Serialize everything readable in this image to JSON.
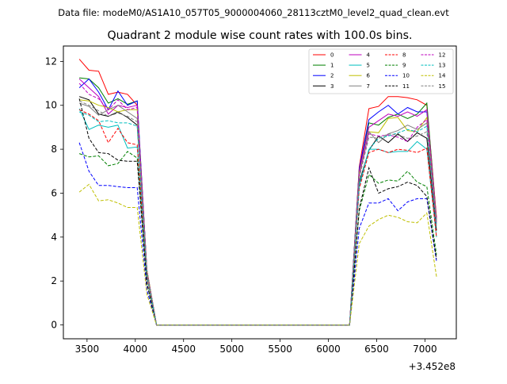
{
  "figure": {
    "suptitle": "Data file: modeM0/AS1A10_057T05_9000004060_28113cztM0_level2_quad_clean.evt"
  },
  "chart_data": {
    "type": "line",
    "title": "Quadrant 2 module wise count rates with 100.0s bins.",
    "xlabel": "",
    "ylabel": "",
    "x_offset_label": "+3.452e8",
    "xlim": [
      3255,
      7325
    ],
    "ylim": [
      -0.63,
      12.7
    ],
    "x_ticks": [
      3500,
      4000,
      4500,
      5000,
      5500,
      6000,
      6500,
      7000
    ],
    "y_ticks": [
      0,
      2,
      4,
      6,
      8,
      10,
      12
    ],
    "grid": false,
    "legend": {
      "placement": "top-right",
      "columns": 4
    },
    "x": [
      3420,
      3520,
      3620,
      3720,
      3820,
      3920,
      4020,
      4120,
      4220,
      4320,
      4420,
      4520,
      4620,
      4720,
      4820,
      4920,
      5020,
      5120,
      5220,
      5320,
      5420,
      5520,
      5620,
      5720,
      5820,
      5920,
      6020,
      6120,
      6220,
      6320,
      6420,
      6520,
      6620,
      6720,
      6820,
      6920,
      7020,
      7120
    ],
    "series": [
      {
        "name": "0",
        "color": "#ff0000",
        "dashed": false,
        "values": [
          12.1,
          11.6,
          11.55,
          10.5,
          10.6,
          10.5,
          10.0,
          2.5,
          0,
          0,
          0,
          0,
          0,
          0,
          0,
          0,
          0,
          0,
          0,
          0,
          0,
          0,
          0,
          0,
          0,
          0,
          0,
          0,
          0,
          7.2,
          9.85,
          9.95,
          10.4,
          10.4,
          10.35,
          10.25,
          10.0,
          4.9
        ]
      },
      {
        "name": "1",
        "color": "#008000",
        "dashed": false,
        "values": [
          11.25,
          11.2,
          10.8,
          10.1,
          10.3,
          10.05,
          10.2,
          2.5,
          0,
          0,
          0,
          0,
          0,
          0,
          0,
          0,
          0,
          0,
          0,
          0,
          0,
          0,
          0,
          0,
          0,
          0,
          0,
          0,
          0,
          7.1,
          9.2,
          9.1,
          9.45,
          9.6,
          9.4,
          9.6,
          10.1,
          4.8
        ]
      },
      {
        "name": "2",
        "color": "#0000ff",
        "dashed": false,
        "values": [
          10.8,
          11.2,
          10.6,
          9.8,
          10.65,
          10.0,
          10.2,
          2.5,
          0,
          0,
          0,
          0,
          0,
          0,
          0,
          0,
          0,
          0,
          0,
          0,
          0,
          0,
          0,
          0,
          0,
          0,
          0,
          0,
          0,
          7.1,
          9.35,
          9.7,
          10.0,
          9.6,
          9.9,
          9.7,
          9.7,
          4.7
        ]
      },
      {
        "name": "3",
        "color": "#000000",
        "dashed": false,
        "values": [
          10.4,
          10.25,
          9.6,
          9.5,
          9.7,
          9.45,
          9.1,
          2.4,
          0,
          0,
          0,
          0,
          0,
          0,
          0,
          0,
          0,
          0,
          0,
          0,
          0,
          0,
          0,
          0,
          0,
          0,
          0,
          0,
          0,
          6.5,
          7.95,
          8.6,
          8.3,
          8.7,
          8.35,
          8.75,
          8.5,
          4.3
        ]
      },
      {
        "name": "4",
        "color": "#bf00bf",
        "dashed": false,
        "values": [
          11.2,
          10.8,
          10.4,
          9.6,
          10.0,
          9.9,
          10.0,
          2.5,
          0,
          0,
          0,
          0,
          0,
          0,
          0,
          0,
          0,
          0,
          0,
          0,
          0,
          0,
          0,
          0,
          0,
          0,
          0,
          0,
          0,
          7.0,
          9.0,
          9.3,
          9.6,
          9.5,
          9.7,
          9.5,
          9.8,
          4.8
        ]
      },
      {
        "name": "5",
        "color": "#00bfbf",
        "dashed": false,
        "values": [
          9.85,
          8.9,
          9.1,
          9.0,
          9.1,
          8.05,
          8.1,
          2.2,
          0,
          0,
          0,
          0,
          0,
          0,
          0,
          0,
          0,
          0,
          0,
          0,
          0,
          0,
          0,
          0,
          0,
          0,
          0,
          0,
          0,
          6.3,
          8.0,
          8.0,
          7.85,
          7.9,
          7.9,
          8.35,
          8.0,
          4.0
        ]
      },
      {
        "name": "6",
        "color": "#bfbf00",
        "dashed": false,
        "values": [
          10.25,
          10.2,
          10.0,
          9.9,
          9.7,
          9.8,
          9.8,
          2.5,
          0,
          0,
          0,
          0,
          0,
          0,
          0,
          0,
          0,
          0,
          0,
          0,
          0,
          0,
          0,
          0,
          0,
          0,
          0,
          0,
          0,
          6.9,
          8.8,
          8.75,
          9.4,
          9.45,
          8.85,
          8.8,
          9.45,
          4.7
        ]
      },
      {
        "name": "7",
        "color": "#808080",
        "dashed": false,
        "values": [
          10.1,
          9.95,
          9.55,
          9.8,
          10.0,
          9.7,
          9.4,
          2.4,
          0,
          0,
          0,
          0,
          0,
          0,
          0,
          0,
          0,
          0,
          0,
          0,
          0,
          0,
          0,
          0,
          0,
          0,
          0,
          0,
          0,
          6.8,
          8.8,
          8.3,
          8.7,
          8.85,
          9.1,
          8.9,
          9.2,
          4.6
        ]
      },
      {
        "name": "8",
        "color": "#ff0000",
        "dashed": true,
        "values": [
          9.8,
          9.6,
          9.3,
          8.3,
          8.95,
          8.3,
          8.2,
          2.2,
          0,
          0,
          0,
          0,
          0,
          0,
          0,
          0,
          0,
          0,
          0,
          0,
          0,
          0,
          0,
          0,
          0,
          0,
          0,
          0,
          0,
          6.2,
          7.85,
          8.0,
          7.85,
          8.0,
          7.95,
          7.85,
          8.05,
          4.0
        ]
      },
      {
        "name": "9",
        "color": "#008000",
        "dashed": true,
        "values": [
          7.8,
          7.65,
          7.7,
          7.25,
          7.35,
          7.9,
          7.6,
          1.9,
          0,
          0,
          0,
          0,
          0,
          0,
          0,
          0,
          0,
          0,
          0,
          0,
          0,
          0,
          0,
          0,
          0,
          0,
          0,
          0,
          0,
          5.2,
          6.85,
          6.45,
          6.6,
          6.55,
          7.0,
          6.5,
          6.3,
          3.2
        ]
      },
      {
        "name": "10",
        "color": "#0000ff",
        "dashed": true,
        "values": [
          8.3,
          7.0,
          6.35,
          6.35,
          6.3,
          6.25,
          6.25,
          1.6,
          0,
          0,
          0,
          0,
          0,
          0,
          0,
          0,
          0,
          0,
          0,
          0,
          0,
          0,
          0,
          0,
          0,
          0,
          0,
          0,
          0,
          4.4,
          5.55,
          5.55,
          5.75,
          5.2,
          5.6,
          5.75,
          5.75,
          2.9
        ]
      },
      {
        "name": "11",
        "color": "#000000",
        "dashed": true,
        "values": [
          10.3,
          8.5,
          7.85,
          7.8,
          7.5,
          7.45,
          7.45,
          1.9,
          0,
          0,
          0,
          0,
          0,
          0,
          0,
          0,
          0,
          0,
          0,
          0,
          0,
          0,
          0,
          0,
          0,
          0,
          0,
          0,
          0,
          5.3,
          7.15,
          6.0,
          6.2,
          6.3,
          6.5,
          6.35,
          5.85,
          3.0
        ]
      },
      {
        "name": "12",
        "color": "#bf00bf",
        "dashed": true,
        "values": [
          11.0,
          10.5,
          10.3,
          9.8,
          10.25,
          9.8,
          9.9,
          2.4,
          0,
          0,
          0,
          0,
          0,
          0,
          0,
          0,
          0,
          0,
          0,
          0,
          0,
          0,
          0,
          0,
          0,
          0,
          0,
          0,
          0,
          6.8,
          8.7,
          8.6,
          8.65,
          8.55,
          8.35,
          9.0,
          9.35,
          4.6
        ]
      },
      {
        "name": "13",
        "color": "#00bfbf",
        "dashed": true,
        "values": [
          9.7,
          9.55,
          9.25,
          9.3,
          9.2,
          9.2,
          9.05,
          2.3,
          0,
          0,
          0,
          0,
          0,
          0,
          0,
          0,
          0,
          0,
          0,
          0,
          0,
          0,
          0,
          0,
          0,
          0,
          0,
          0,
          0,
          6.4,
          8.0,
          8.5,
          8.6,
          8.75,
          8.9,
          8.8,
          9.05,
          4.5
        ]
      },
      {
        "name": "14",
        "color": "#bfbf00",
        "dashed": true,
        "values": [
          6.05,
          6.4,
          5.65,
          5.7,
          5.55,
          5.35,
          5.35,
          1.4,
          0,
          0,
          0,
          0,
          0,
          0,
          0,
          0,
          0,
          0,
          0,
          0,
          0,
          0,
          0,
          0,
          0,
          0,
          0,
          0,
          0,
          3.7,
          4.5,
          4.8,
          5.0,
          4.9,
          4.7,
          4.65,
          5.1,
          2.2
        ]
      },
      {
        "name": "15",
        "color": "#808080",
        "dashed": true,
        "values": [
          10.2,
          10.0,
          9.75,
          9.5,
          9.65,
          9.5,
          9.25,
          2.3,
          0,
          0,
          0,
          0,
          0,
          0,
          0,
          0,
          0,
          0,
          0,
          0,
          0,
          0,
          0,
          0,
          0,
          0,
          0,
          0,
          0,
          6.7,
          8.55,
          8.5,
          8.7,
          8.65,
          8.5,
          8.6,
          8.8,
          4.4
        ]
      }
    ]
  }
}
